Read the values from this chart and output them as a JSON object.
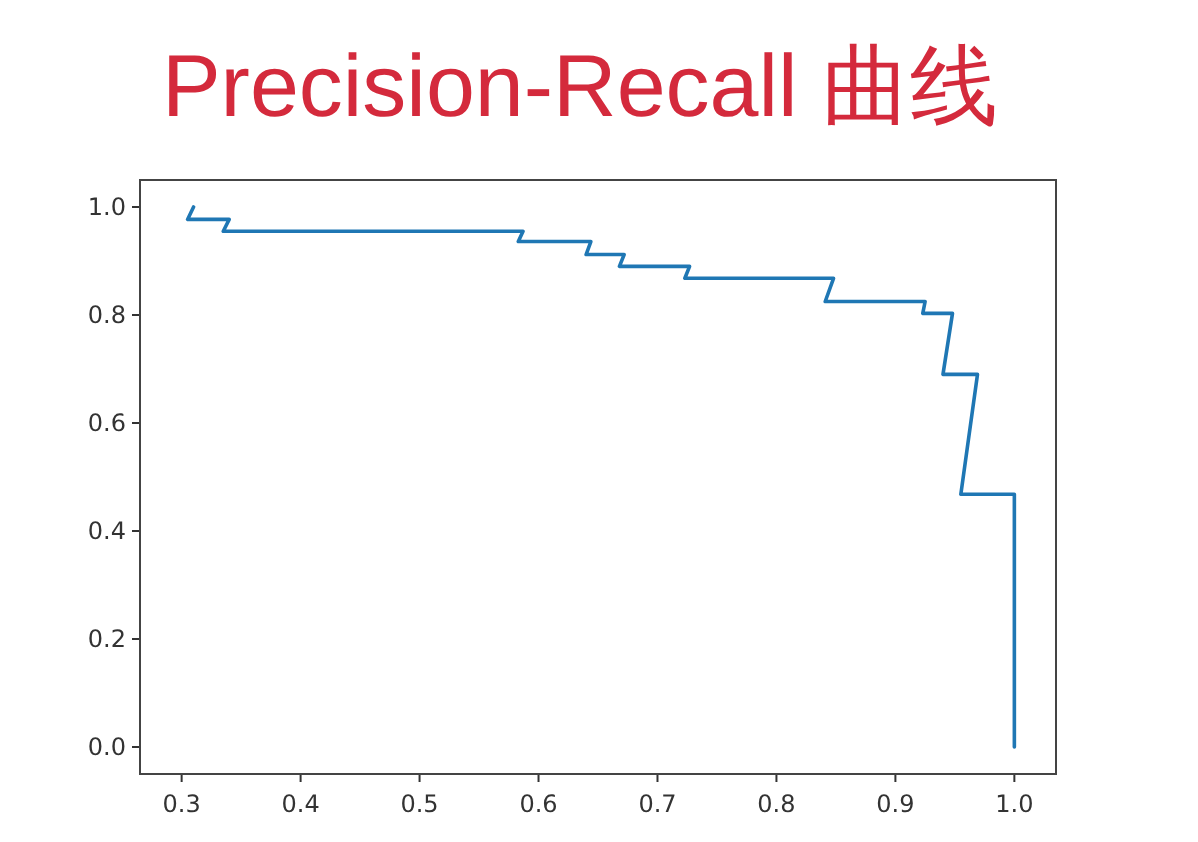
{
  "chart_data": {
    "type": "line",
    "title": "Precision-Recall 曲线",
    "series": [
      {
        "color": "#1f77b4",
        "x": [
          0.31,
          0.305,
          0.34,
          0.335,
          0.587,
          0.583,
          0.644,
          0.64,
          0.672,
          0.668,
          0.727,
          0.723,
          0.848,
          0.841,
          0.925,
          0.923,
          0.948,
          0.94,
          0.969,
          0.955,
          1.0,
          1.0
        ],
        "values": [
          1.0,
          0.977,
          0.977,
          0.955,
          0.955,
          0.936,
          0.936,
          0.912,
          0.912,
          0.89,
          0.89,
          0.868,
          0.868,
          0.825,
          0.825,
          0.803,
          0.803,
          0.69,
          0.69,
          0.468,
          0.468,
          0.0
        ]
      }
    ],
    "xlim": [
      0.265,
      1.035
    ],
    "ylim": [
      -0.05,
      1.05
    ],
    "xticks": [
      {
        "value": 0.3,
        "label": "0.3"
      },
      {
        "value": 0.4,
        "label": "0.4"
      },
      {
        "value": 0.5,
        "label": "0.5"
      },
      {
        "value": 0.6,
        "label": "0.6"
      },
      {
        "value": 0.7,
        "label": "0.7"
      },
      {
        "value": 0.8,
        "label": "0.8"
      },
      {
        "value": 0.9,
        "label": "0.9"
      },
      {
        "value": 1.0,
        "label": "1.0"
      }
    ],
    "yticks": [
      {
        "value": 0.0,
        "label": "0.0"
      },
      {
        "value": 0.2,
        "label": "0.2"
      },
      {
        "value": 0.4,
        "label": "0.4"
      },
      {
        "value": 0.6,
        "label": "0.6"
      },
      {
        "value": 0.8,
        "label": "0.8"
      },
      {
        "value": 1.0,
        "label": "1.0"
      }
    ],
    "grid": false,
    "marker": "none",
    "line_style": "solid"
  }
}
